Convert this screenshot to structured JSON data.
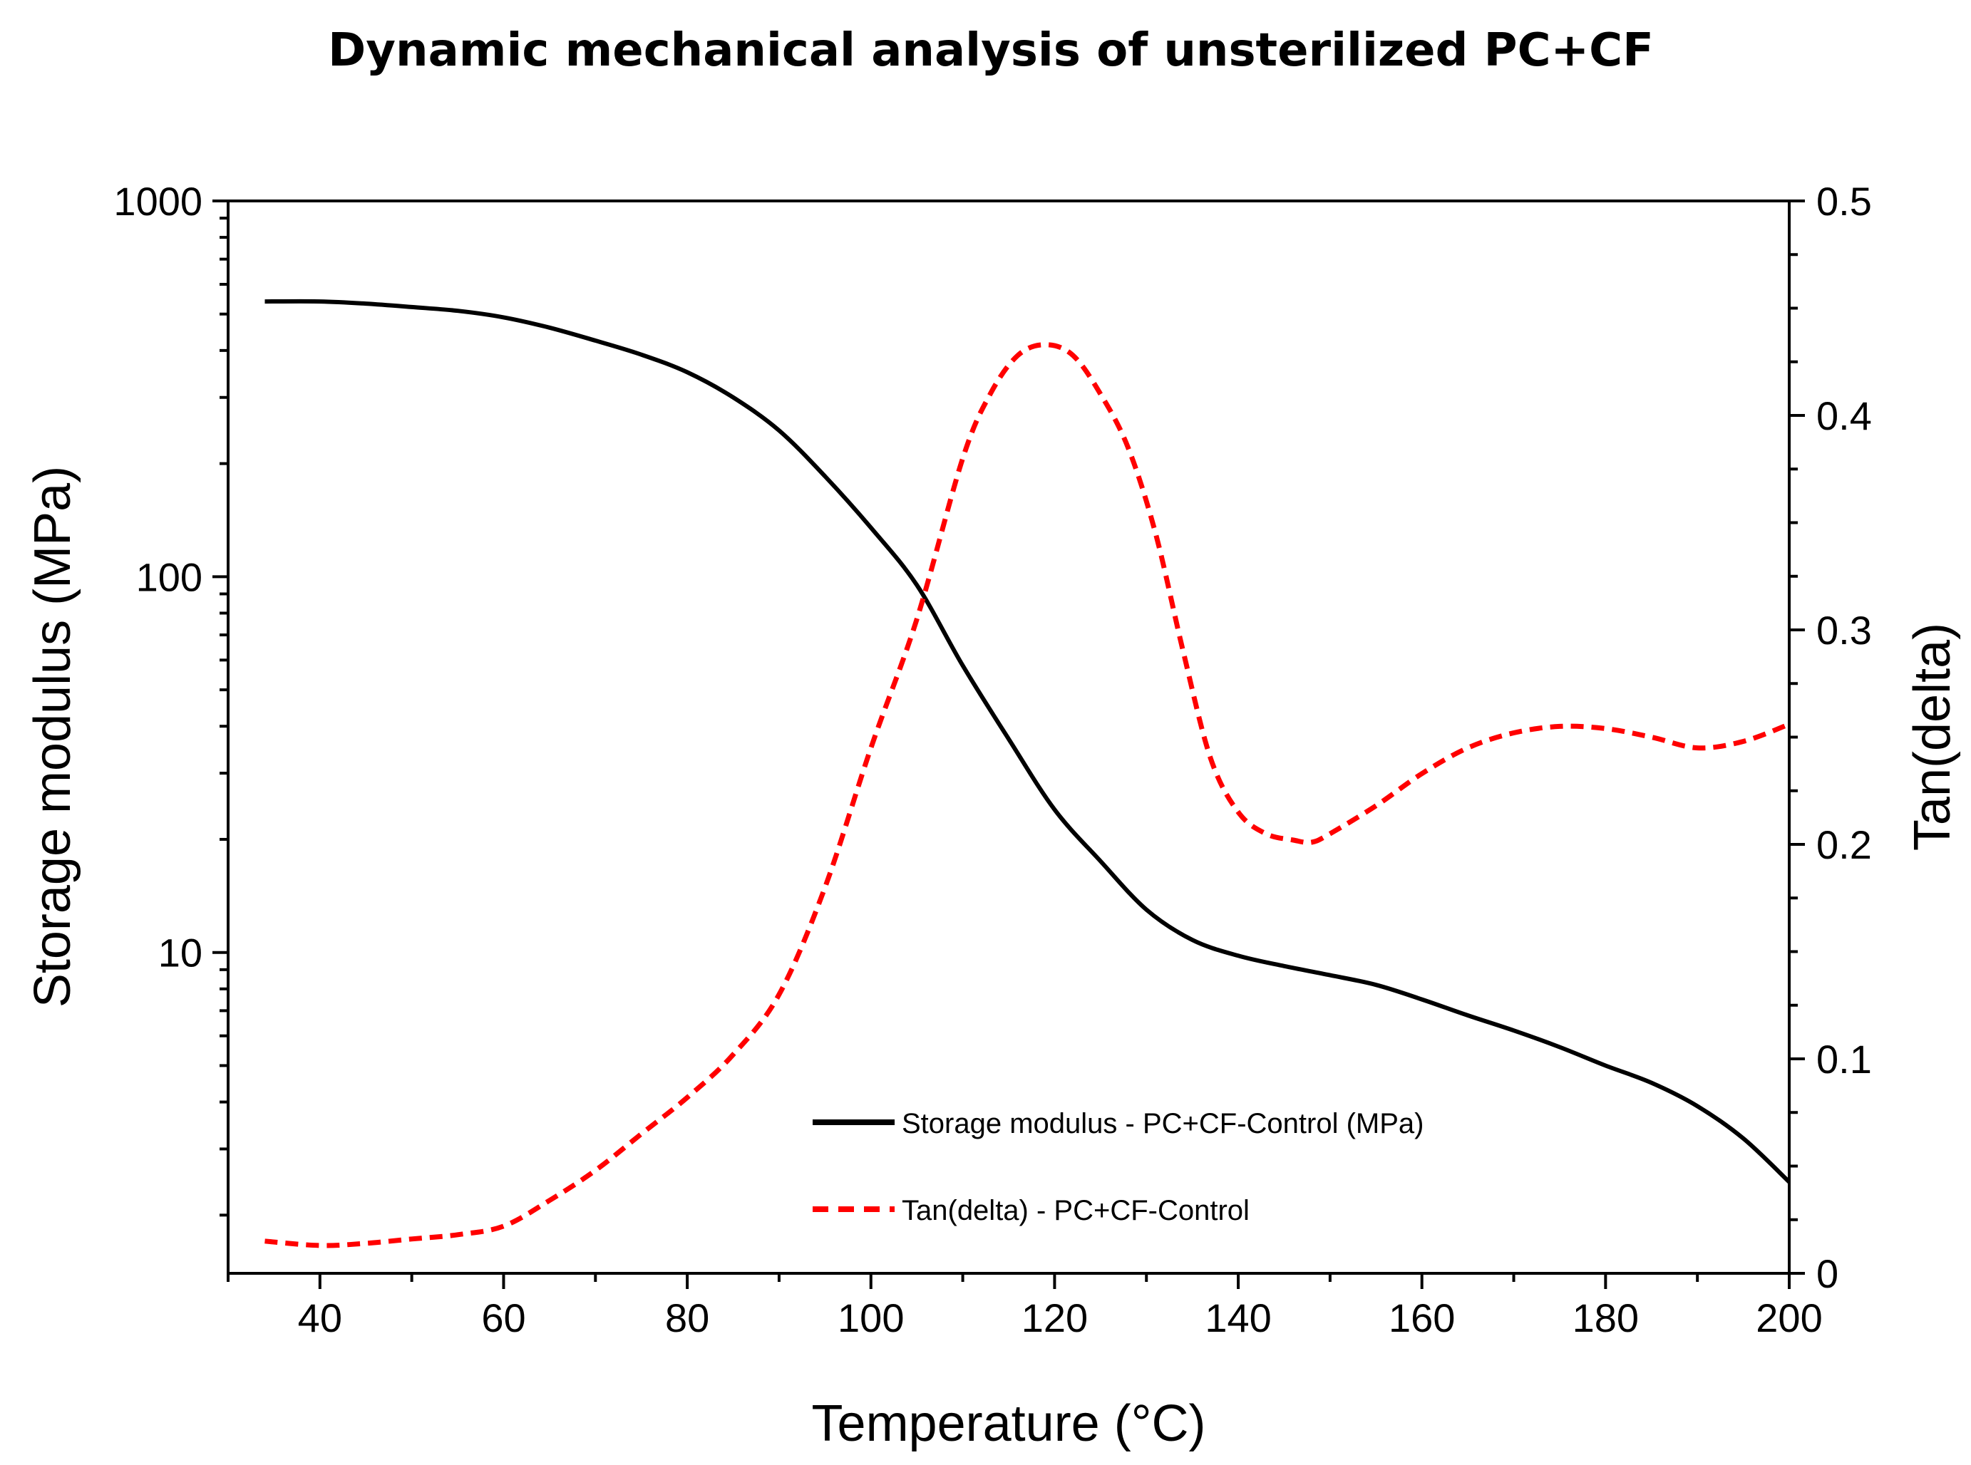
{
  "chart_data": {
    "type": "line",
    "title": "Dynamic mechanical analysis of unsterilized PC+CF",
    "xlabel": "Temperature (°C)",
    "ylabel": "Storage modulus (MPa)",
    "y2label": "Tan(delta)",
    "xlim": [
      30,
      200
    ],
    "ylim": [
      1.4,
      1000
    ],
    "yscale": "log",
    "y2lim": [
      0,
      0.5
    ],
    "x_ticks": [
      40,
      60,
      80,
      100,
      120,
      140,
      160,
      180,
      200
    ],
    "y_ticks": [
      {
        "value": 10,
        "label": "10"
      },
      {
        "value": 100,
        "label": "100"
      },
      {
        "value": 1000,
        "label": "1000"
      }
    ],
    "y2_ticks": [
      {
        "value": 0,
        "label": "0"
      },
      {
        "value": 0.1,
        "label": "0.1"
      },
      {
        "value": 0.2,
        "label": "0.2"
      },
      {
        "value": 0.3,
        "label": "0.3"
      },
      {
        "value": 0.4,
        "label": "0.4"
      },
      {
        "value": 0.5,
        "label": "0.5"
      }
    ],
    "legend_position": "bottom-center",
    "series": [
      {
        "name": "Storage modulus - PC+CF-Control (MPa)",
        "axis": "left",
        "color": "#000000",
        "style": "solid",
        "x": [
          34,
          40,
          45,
          50,
          55,
          60,
          65,
          70,
          75,
          80,
          85,
          90,
          95,
          100,
          105,
          110,
          115,
          120,
          125,
          130,
          135,
          140,
          145,
          150,
          155,
          160,
          165,
          170,
          175,
          180,
          185,
          190,
          195,
          200
        ],
        "y": [
          540,
          540,
          533,
          522,
          510,
          490,
          460,
          425,
          390,
          350,
          300,
          245,
          185,
          135,
          95,
          58,
          37,
          24,
          17.5,
          13,
          10.8,
          9.8,
          9.2,
          8.7,
          8.2,
          7.5,
          6.8,
          6.2,
          5.6,
          5.0,
          4.5,
          3.9,
          3.2,
          2.45
        ]
      },
      {
        "name": "Tan(delta) - PC+CF-Control",
        "axis": "right",
        "color": "#ff0000",
        "style": "dashed",
        "x": [
          34,
          40,
          45,
          50,
          55,
          60,
          65,
          70,
          75,
          80,
          85,
          90,
          95,
          100,
          105,
          110,
          113,
          116,
          119,
          122,
          125,
          128,
          131,
          134,
          137,
          140,
          143,
          146,
          148,
          150,
          155,
          160,
          165,
          170,
          175,
          180,
          185,
          190,
          195,
          200
        ],
        "y": [
          0.015,
          0.013,
          0.014,
          0.016,
          0.018,
          0.022,
          0.034,
          0.048,
          0.065,
          0.082,
          0.102,
          0.13,
          0.18,
          0.245,
          0.305,
          0.38,
          0.41,
          0.428,
          0.433,
          0.428,
          0.41,
          0.385,
          0.345,
          0.29,
          0.24,
          0.215,
          0.205,
          0.202,
          0.201,
          0.205,
          0.218,
          0.233,
          0.245,
          0.252,
          0.255,
          0.254,
          0.25,
          0.245,
          0.248,
          0.256
        ]
      }
    ]
  }
}
